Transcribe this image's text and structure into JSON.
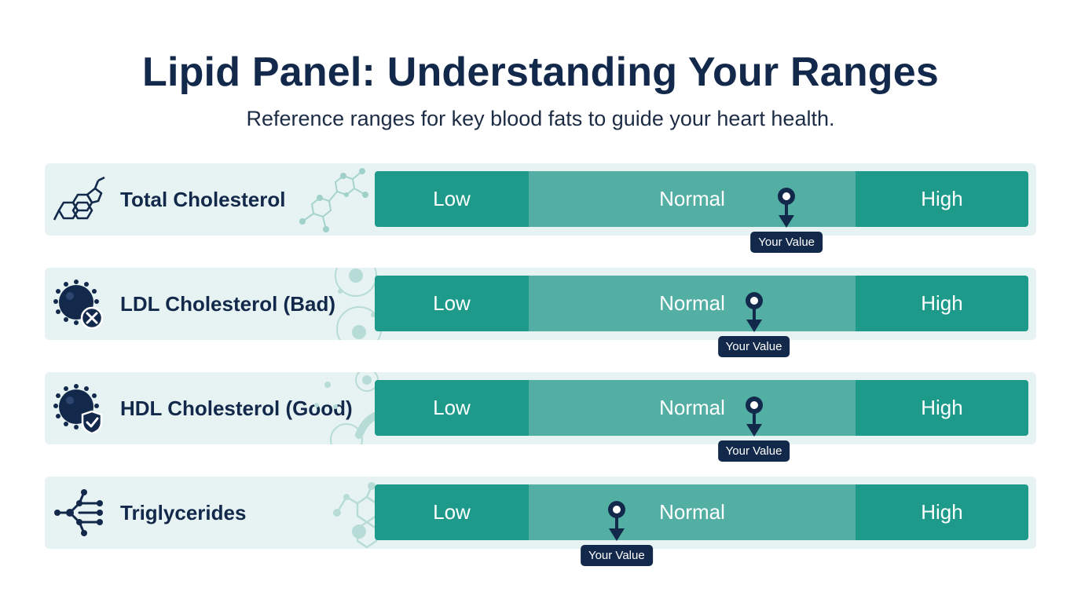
{
  "header": {
    "title": "Lipid Panel: Understanding Your Ranges",
    "subtitle": "Reference ranges for key blood fats to guide your heart health."
  },
  "range_labels": {
    "low": "Low",
    "normal": "Normal",
    "high": "High"
  },
  "marker_label": "Your Value",
  "colors": {
    "navy": "#13294b",
    "low_high_segment": "#1e9a8b",
    "normal_segment": "#53aea3",
    "row_background": "#e7f3f2"
  },
  "rows": [
    {
      "label": "Total Cholesterol",
      "icon": "steroid-molecule-icon",
      "marker_position": 0.63
    },
    {
      "label": "LDL Cholesterol (Bad)",
      "icon": "ldl-particle-x-icon",
      "marker_position": 0.58
    },
    {
      "label": "HDL Cholesterol (Good)",
      "icon": "hdl-particle-shield-icon",
      "marker_position": 0.58
    },
    {
      "label": "Triglycerides",
      "icon": "triglyceride-molecule-icon",
      "marker_position": 0.37
    }
  ]
}
